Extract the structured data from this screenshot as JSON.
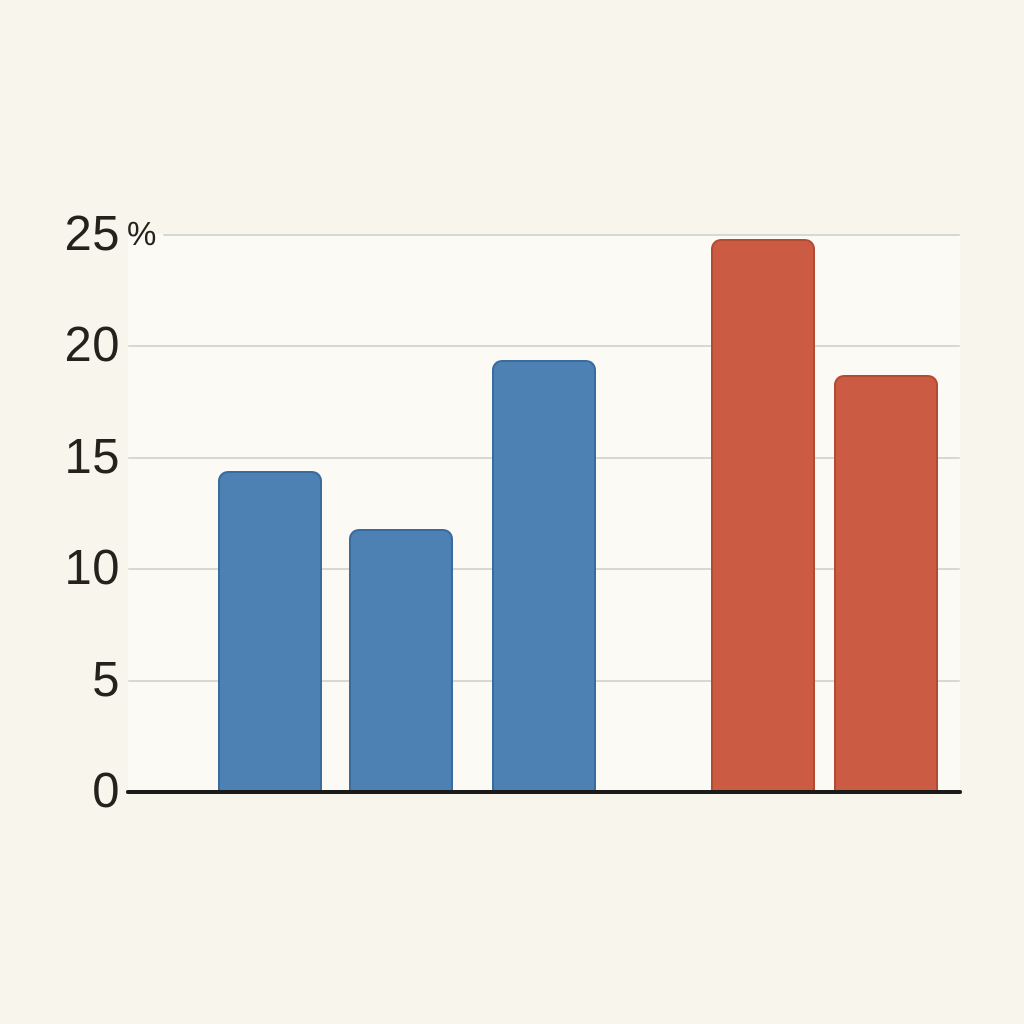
{
  "chart_data": {
    "type": "bar",
    "title": "",
    "subtitle": "",
    "xlabel": "",
    "ylabel": "",
    "y_unit_suffix": "%",
    "ylim": [
      0,
      26.5
    ],
    "grid": true,
    "legend": "none",
    "x_tick_labels": [],
    "y_ticks": [
      {
        "value": 0,
        "label": "0"
      },
      {
        "value": 5,
        "label": "5"
      },
      {
        "value": 10,
        "label": "10"
      },
      {
        "value": 15,
        "label": "15"
      },
      {
        "value": 20,
        "label": "20"
      },
      {
        "value": 25,
        "label": "25",
        "suffix": "%"
      }
    ],
    "bars": [
      {
        "value": 14.4,
        "series": "blue",
        "fill": "#4d80b3",
        "edge": "#3a6b9e"
      },
      {
        "value": 11.8,
        "series": "blue",
        "fill": "#4d80b3",
        "edge": "#3a6b9e"
      },
      {
        "value": 19.4,
        "series": "blue",
        "fill": "#4d80b3",
        "edge": "#3a6b9e"
      },
      {
        "value": 24.8,
        "series": "red",
        "fill": "#cb5b42",
        "edge": "#b34b34"
      },
      {
        "value": 18.7,
        "series": "red",
        "fill": "#cb5b42",
        "edge": "#b34b34"
      }
    ],
    "colors": {
      "background": "#f8f5ec",
      "plot_background": "#fcfaf4",
      "gridline": "#d6d9d1",
      "axis": "#1a1a18",
      "tick_text": "#23221d",
      "series_blue": "#4d80b3",
      "series_red": "#cb5b42"
    }
  }
}
